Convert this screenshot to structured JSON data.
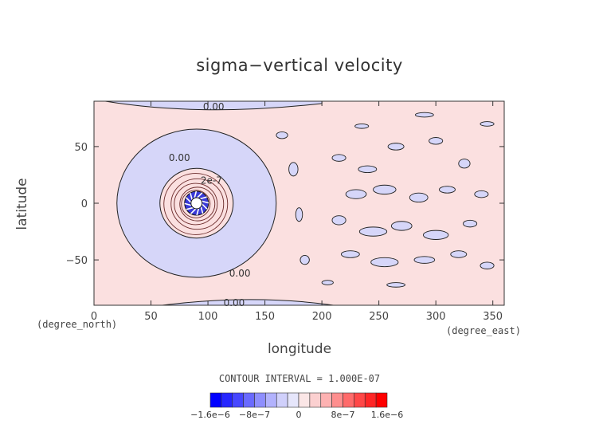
{
  "chart_data": {
    "type": "contour",
    "title": "sigma−vertical velocity",
    "xlabel": "longitude",
    "ylabel": "latitude",
    "x_units": "(degree_east)",
    "y_units": "(degree_north)",
    "xlim": [
      0,
      360
    ],
    "ylim": [
      -90,
      90
    ],
    "xticks": [
      0,
      50,
      100,
      150,
      200,
      250,
      300,
      350
    ],
    "yticks": [
      -50,
      0,
      50
    ],
    "contour_interval_label": "CONTOUR INTERVAL = 1.000E-07",
    "contour_interval": 1e-07,
    "contour_labels": [
      {
        "text": "0.00",
        "lon": 105,
        "lat": 85
      },
      {
        "text": "0.00",
        "lon": 75,
        "lat": 40
      },
      {
        "text": "2e-7",
        "lon": 103,
        "lat": 20
      },
      {
        "text": "0.00",
        "lon": 128,
        "lat": -62
      },
      {
        "text": "0.00",
        "lon": 123,
        "lat": -88
      }
    ],
    "features": [
      {
        "name": "positive vertical velocity center (rings up to ~1.6e-6)",
        "lon": 90,
        "lat": 0
      },
      {
        "name": "negative ring",
        "lon": 90,
        "lat": 0,
        "approx_radius_deg": 70
      }
    ],
    "colorbar": {
      "range": [
        -1.6e-06,
        1.6e-06
      ],
      "tick_labels": [
        "−1.6e−6",
        "−8e−7",
        "0",
        "8e−7",
        "1.6e−6"
      ],
      "tick_values": [
        -1.6e-06,
        -8e-07,
        0,
        8e-07,
        1.6e-06
      ],
      "colors": [
        "#0000ff",
        "#2626ff",
        "#4747ff",
        "#6a6aff",
        "#8e8efe",
        "#b2b2fd",
        "#d0d0fb",
        "#e6e6fb",
        "#fbe6e6",
        "#fbd0d0",
        "#fdb2b2",
        "#fe8e8e",
        "#ff6a6a",
        "#ff4747",
        "#ff2626",
        "#ff0000"
      ]
    },
    "fill_colors": {
      "positive": "#fbe0e0",
      "negative": "#d6d6f9"
    }
  }
}
